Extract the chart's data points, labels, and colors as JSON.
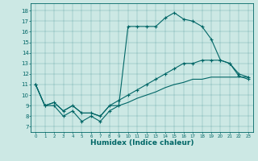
{
  "xlabel": "Humidex (Indice chaleur)",
  "bg_color": "#cce8e4",
  "line_color": "#006666",
  "xlim": [
    -0.5,
    23.5
  ],
  "ylim": [
    6.5,
    18.7
  ],
  "yticks": [
    7,
    8,
    9,
    10,
    11,
    12,
    13,
    14,
    15,
    16,
    17,
    18
  ],
  "xticks": [
    0,
    1,
    2,
    3,
    4,
    5,
    6,
    7,
    8,
    9,
    10,
    11,
    12,
    13,
    14,
    15,
    16,
    17,
    18,
    19,
    20,
    21,
    22,
    23
  ],
  "line1_x": [
    0,
    1,
    2,
    3,
    4,
    5,
    6,
    7,
    8,
    9,
    10,
    11,
    12,
    13,
    14,
    15,
    16,
    17,
    18,
    19,
    20,
    21,
    22,
    23
  ],
  "line1_y": [
    11.0,
    9.0,
    9.0,
    8.0,
    8.5,
    7.5,
    8.0,
    7.5,
    8.5,
    9.0,
    16.5,
    16.5,
    16.5,
    16.5,
    17.3,
    17.8,
    17.2,
    17.0,
    16.5,
    15.3,
    13.3,
    13.0,
    11.8,
    11.5
  ],
  "line2_x": [
    0,
    1,
    2,
    3,
    4,
    5,
    6,
    7,
    8,
    9,
    10,
    11,
    12,
    13,
    14,
    15,
    16,
    17,
    18,
    19,
    20,
    21,
    22,
    23
  ],
  "line2_y": [
    11.0,
    9.0,
    9.3,
    8.5,
    9.0,
    8.3,
    8.3,
    8.0,
    9.0,
    9.5,
    10.0,
    10.5,
    11.0,
    11.5,
    12.0,
    12.5,
    13.0,
    13.0,
    13.3,
    13.3,
    13.3,
    13.0,
    12.0,
    11.7
  ],
  "line3_x": [
    0,
    1,
    2,
    3,
    4,
    5,
    6,
    7,
    8,
    9,
    10,
    11,
    12,
    13,
    14,
    15,
    16,
    17,
    18,
    19,
    20,
    21,
    22,
    23
  ],
  "line3_y": [
    11.0,
    9.0,
    9.3,
    8.5,
    9.0,
    8.3,
    8.3,
    8.0,
    9.0,
    9.0,
    9.3,
    9.7,
    10.0,
    10.3,
    10.7,
    11.0,
    11.2,
    11.5,
    11.5,
    11.7,
    11.7,
    11.7,
    11.7,
    11.7
  ]
}
